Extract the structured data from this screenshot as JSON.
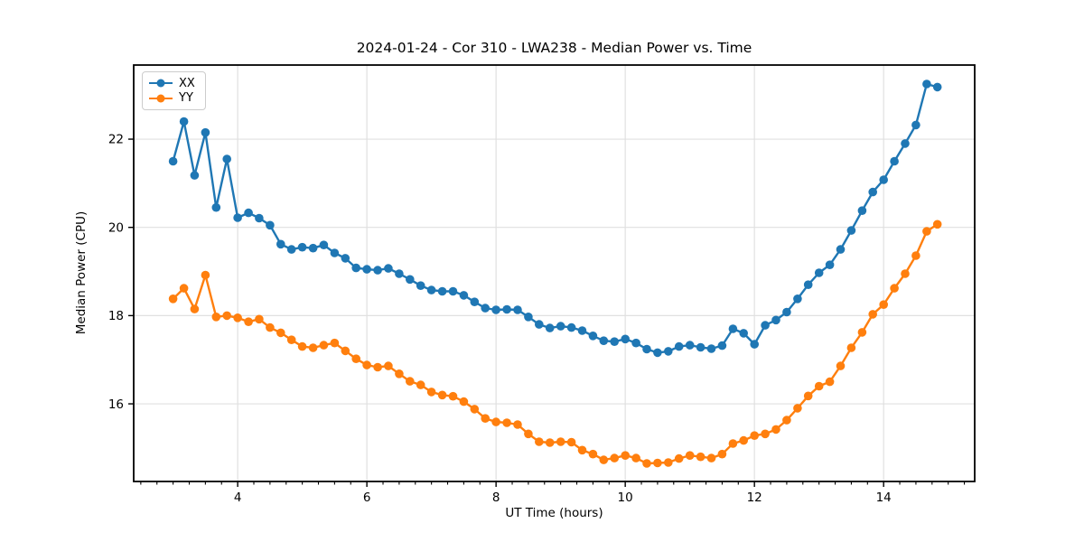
{
  "figure": {
    "title": "2024-01-24 - Cor 310 - LWA238 - Median Power vs. Time",
    "xlabel": "UT Time (hours)",
    "ylabel": "Median Power (CPU)"
  },
  "chart_data": {
    "type": "line",
    "title": "2024-01-24 - Cor 310 - LWA238 - Median Power vs. Time",
    "xlabel": "UT Time (hours)",
    "ylabel": "Median Power (CPU)",
    "xlim": [
      2.39,
      15.41
    ],
    "ylim": [
      14.24,
      23.68
    ],
    "xticks": [
      4,
      6,
      8,
      10,
      12,
      14
    ],
    "yticks": [
      16,
      18,
      20,
      22
    ],
    "minor_xtick_step": 0.25,
    "grid": true,
    "grid_color": "#e0e0e0",
    "legend_position": "upper left",
    "background_color": "#ffffff",
    "spine_color": "#000000",
    "x": [
      3.0,
      3.167,
      3.333,
      3.5,
      3.667,
      3.833,
      4.0,
      4.167,
      4.333,
      4.5,
      4.667,
      4.833,
      5.0,
      5.167,
      5.333,
      5.5,
      5.667,
      5.833,
      6.0,
      6.167,
      6.333,
      6.5,
      6.667,
      6.833,
      7.0,
      7.167,
      7.333,
      7.5,
      7.667,
      7.833,
      8.0,
      8.167,
      8.333,
      8.5,
      8.667,
      8.833,
      9.0,
      9.167,
      9.333,
      9.5,
      9.667,
      9.833,
      10.0,
      10.167,
      10.333,
      10.5,
      10.667,
      10.833,
      11.0,
      11.167,
      11.333,
      11.5,
      11.667,
      11.833,
      12.0,
      12.167,
      12.333,
      12.5,
      12.667,
      12.833,
      13.0,
      13.167,
      13.333,
      13.5,
      13.667,
      13.833,
      14.0,
      14.167,
      14.333,
      14.5,
      14.667,
      14.833
    ],
    "series": [
      {
        "name": "XX",
        "color": "#1f77b4",
        "values": [
          21.5,
          22.4,
          21.18,
          22.15,
          20.45,
          21.55,
          20.22,
          20.33,
          20.21,
          20.05,
          19.62,
          19.5,
          19.55,
          19.53,
          19.6,
          19.42,
          19.3,
          19.08,
          19.05,
          19.03,
          19.07,
          18.95,
          18.82,
          18.68,
          18.58,
          18.55,
          18.55,
          18.46,
          18.31,
          18.17,
          18.13,
          18.14,
          18.13,
          17.97,
          17.8,
          17.72,
          17.76,
          17.73,
          17.66,
          17.54,
          17.43,
          17.41,
          17.47,
          17.38,
          17.24,
          17.16,
          17.19,
          17.3,
          17.33,
          17.28,
          17.25,
          17.32,
          17.7,
          17.6,
          17.35,
          17.78,
          17.9,
          18.08,
          18.38,
          18.7,
          18.97,
          19.15,
          19.5,
          19.93,
          20.38,
          20.8,
          21.08,
          21.5,
          21.9,
          22.32,
          23.25,
          23.18
        ]
      },
      {
        "name": "YY",
        "color": "#ff7f0e",
        "values": [
          18.38,
          18.62,
          18.15,
          18.92,
          17.97,
          18.0,
          17.95,
          17.86,
          17.92,
          17.73,
          17.61,
          17.45,
          17.3,
          17.27,
          17.33,
          17.38,
          17.2,
          17.02,
          16.88,
          16.83,
          16.86,
          16.68,
          16.51,
          16.43,
          16.27,
          16.2,
          16.17,
          16.05,
          15.88,
          15.67,
          15.59,
          15.57,
          15.53,
          15.32,
          15.14,
          15.12,
          15.14,
          15.13,
          14.95,
          14.86,
          14.73,
          14.77,
          14.83,
          14.77,
          14.65,
          14.66,
          14.67,
          14.76,
          14.83,
          14.8,
          14.77,
          14.86,
          15.1,
          15.17,
          15.28,
          15.32,
          15.42,
          15.63,
          15.9,
          16.18,
          16.4,
          16.5,
          16.86,
          17.27,
          17.62,
          18.03,
          18.25,
          18.62,
          18.95,
          19.36,
          19.91,
          20.07
        ]
      }
    ]
  }
}
